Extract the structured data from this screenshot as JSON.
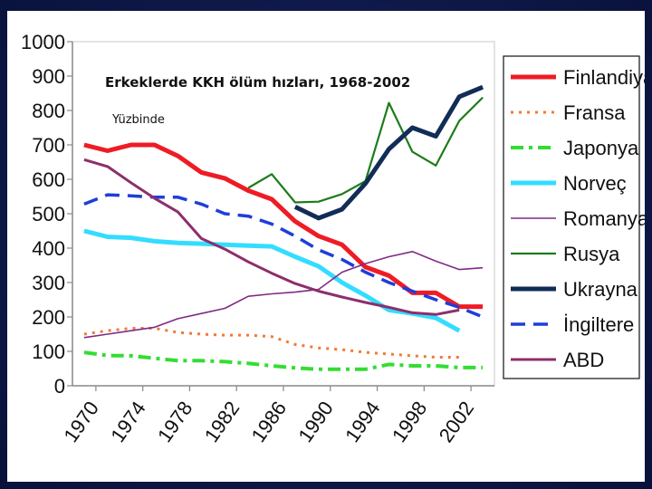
{
  "chart_data": {
    "type": "line",
    "title": "Erkeklerde KKH ölüm hızları, 1968-2002",
    "subtitle": "Yüzbinde",
    "xlabel": "",
    "ylabel": "",
    "xlim": [
      1968,
      2004
    ],
    "ylim": [
      0,
      1000
    ],
    "yticks": [
      0,
      100,
      200,
      300,
      400,
      500,
      600,
      700,
      800,
      900,
      1000
    ],
    "y_tick_labels": [
      "0",
      "100",
      "200",
      "300",
      "400",
      "500",
      "600",
      "700",
      "800",
      "900",
      "1000"
    ],
    "xticks": [
      1970,
      1974,
      1978,
      1982,
      1986,
      1990,
      1994,
      1998,
      2002
    ],
    "x_tick_labels": [
      "1970",
      "1974",
      "1978",
      "1982",
      "1986",
      "1990",
      "1994",
      "1998",
      "2002"
    ],
    "legend_position": "right",
    "series": [
      {
        "name": "Finlandiya",
        "color": "#ee1c25",
        "width": 5,
        "dash": "solid",
        "x": [
          1969,
          1971,
          1973,
          1975,
          1977,
          1979,
          1981,
          1983,
          1985,
          1987,
          1989,
          1991,
          1993,
          1995,
          1997,
          1999,
          2001,
          2003
        ],
        "y": [
          700,
          683,
          700,
          700,
          668,
          620,
          603,
          567,
          542,
          478,
          435,
          410,
          345,
          320,
          270,
          270,
          230,
          230
        ]
      },
      {
        "name": "Fransa",
        "color": "#f07a35",
        "width": 3,
        "dash": "3,6",
        "x": [
          1969,
          1971,
          1973,
          1975,
          1977,
          1979,
          1981,
          1983,
          1985,
          1987,
          1989,
          1991,
          1993,
          1995,
          1997,
          1999,
          2001
        ],
        "y": [
          150,
          160,
          167,
          167,
          155,
          150,
          147,
          147,
          143,
          120,
          110,
          105,
          97,
          92,
          87,
          83,
          83
        ]
      },
      {
        "name": "Japonya",
        "color": "#33dd33",
        "width": 4,
        "dash": "14,6,4,6",
        "x": [
          1969,
          1971,
          1973,
          1975,
          1977,
          1979,
          1981,
          1983,
          1985,
          1987,
          1989,
          1991,
          1993,
          1995,
          1997,
          1999,
          2001,
          2003
        ],
        "y": [
          97,
          88,
          87,
          80,
          73,
          73,
          70,
          65,
          58,
          52,
          48,
          48,
          48,
          62,
          58,
          58,
          53,
          53
        ]
      },
      {
        "name": "Norveç",
        "color": "#33ddff",
        "width": 5,
        "dash": "solid",
        "x": [
          1969,
          1971,
          1973,
          1975,
          1977,
          1979,
          1981,
          1983,
          1985,
          1987,
          1989,
          1991,
          1993,
          1995,
          1997,
          1999,
          2001
        ],
        "y": [
          450,
          433,
          430,
          420,
          415,
          413,
          410,
          407,
          405,
          375,
          347,
          300,
          262,
          220,
          210,
          197,
          160
        ]
      },
      {
        "name": "Romanya",
        "color": "#802a86",
        "width": 1.6,
        "dash": "solid",
        "x": [
          1969,
          1971,
          1973,
          1975,
          1977,
          1979,
          1981,
          1983,
          1985,
          1987,
          1989,
          1991,
          1993,
          1995,
          1997,
          1999,
          2001,
          2003
        ],
        "y": [
          140,
          150,
          160,
          170,
          195,
          210,
          225,
          260,
          267,
          272,
          280,
          330,
          355,
          375,
          390,
          362,
          338,
          343
        ]
      },
      {
        "name": "Rusya",
        "color": "#1b7c1b",
        "width": 2.2,
        "dash": "solid",
        "x": [
          1983,
          1985,
          1987,
          1989,
          1991,
          1993,
          1995,
          1997,
          1999,
          2001,
          2003
        ],
        "y": [
          575,
          615,
          533,
          535,
          557,
          595,
          822,
          680,
          640,
          770,
          838
        ]
      },
      {
        "name": "Ukrayna",
        "color": "#112d57",
        "width": 5,
        "dash": "solid",
        "x": [
          1987,
          1989,
          1991,
          1993,
          1995,
          1997,
          1999,
          2001,
          2003
        ],
        "y": [
          520,
          487,
          513,
          588,
          688,
          750,
          725,
          840,
          868
        ]
      },
      {
        "name": "İngiltere",
        "color": "#1f3ed8",
        "width": 3.5,
        "dash": "16,9",
        "x": [
          1969,
          1971,
          1973,
          1975,
          1977,
          1979,
          1981,
          1983,
          1985,
          1987,
          1989,
          1991,
          1993,
          1995,
          1997,
          1999,
          2001,
          2003
        ],
        "y": [
          528,
          555,
          552,
          548,
          548,
          528,
          500,
          493,
          470,
          435,
          395,
          367,
          330,
          300,
          275,
          250,
          228,
          200
        ]
      },
      {
        "name": "ABD",
        "color": "#8c2f6b",
        "width": 3,
        "dash": "solid",
        "x": [
          1969,
          1971,
          1973,
          1975,
          1977,
          1979,
          1981,
          1983,
          1985,
          1987,
          1989,
          1991,
          1993,
          1995,
          1997,
          1999,
          2001
        ],
        "y": [
          657,
          637,
          590,
          545,
          505,
          428,
          397,
          360,
          327,
          297,
          275,
          258,
          242,
          228,
          212,
          207,
          220
        ]
      }
    ]
  }
}
